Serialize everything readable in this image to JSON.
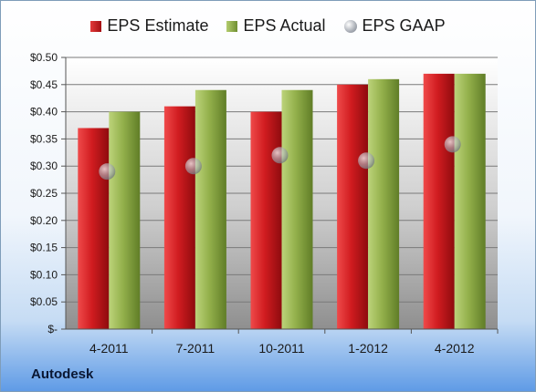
{
  "legend": {
    "estimate": "EPS Estimate",
    "actual": "EPS Actual",
    "gaap": "EPS GAAP"
  },
  "company": "Autodesk",
  "colors": {
    "estimate": "#c4171b",
    "actual": "#8cab45",
    "gaap": "#a8adb5"
  },
  "chart_data": {
    "type": "bar",
    "categories": [
      "4-2011",
      "7-2011",
      "10-2011",
      "1-2012",
      "4-2012"
    ],
    "series": [
      {
        "name": "EPS Estimate",
        "values": [
          0.37,
          0.41,
          0.4,
          0.45,
          0.47
        ]
      },
      {
        "name": "EPS Actual",
        "values": [
          0.4,
          0.44,
          0.44,
          0.46,
          0.47
        ]
      },
      {
        "name": "EPS GAAP",
        "values": [
          0.29,
          0.3,
          0.32,
          0.31,
          0.34
        ]
      }
    ],
    "yticks": [
      "$-",
      "$0.05",
      "$0.10",
      "$0.15",
      "$0.20",
      "$0.25",
      "$0.30",
      "$0.35",
      "$0.40",
      "$0.45",
      "$0.50"
    ],
    "ylim": [
      0,
      0.5
    ],
    "grid": true,
    "legend_position": "top"
  }
}
